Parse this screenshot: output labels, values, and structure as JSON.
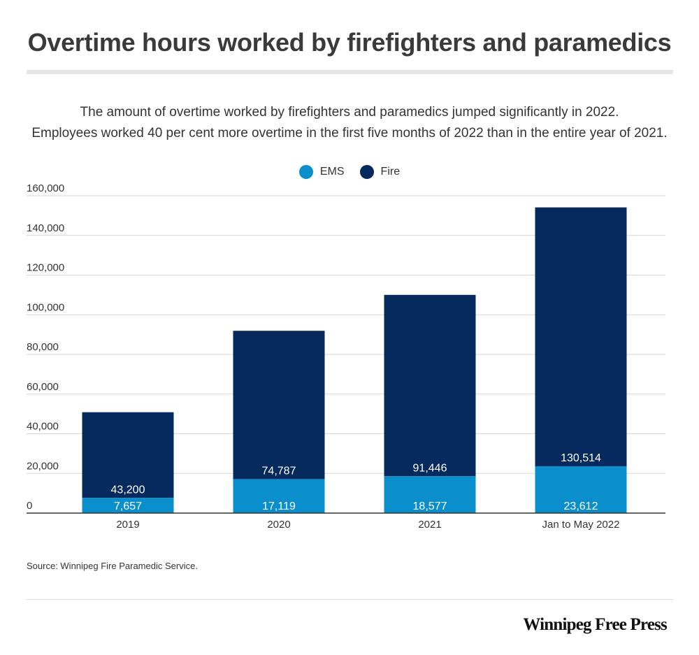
{
  "header": {
    "title": "Overtime hours worked by firefighters and paramedics",
    "subtitle_line1": "The amount of overtime worked by firefighters and paramedics jumped significantly in 2022.",
    "subtitle_line2": "Employees worked 40 per cent more overtime in the first five months of 2022 than in the entire year of 2021."
  },
  "legend": [
    {
      "label": "EMS",
      "color": "#0a8fcc"
    },
    {
      "label": "Fire",
      "color": "#062a5e"
    }
  ],
  "chart_data": {
    "type": "bar",
    "stacked": true,
    "categories": [
      "2019",
      "2020",
      "2021",
      "Jan to May 2022"
    ],
    "series": [
      {
        "name": "EMS",
        "values": [
          7657,
          17119,
          18577,
          23612
        ],
        "labels": [
          "7,657",
          "17,119",
          "18,577",
          "23,612"
        ],
        "color": "#0a8fcc"
      },
      {
        "name": "Fire",
        "values": [
          43200,
          74787,
          91446,
          130514
        ],
        "labels": [
          "43,200",
          "74,787",
          "91,446",
          "130,514"
        ],
        "color": "#062a5e"
      }
    ],
    "ylim": [
      0,
      160000
    ],
    "yticks": [
      0,
      20000,
      40000,
      60000,
      80000,
      100000,
      120000,
      140000,
      160000
    ],
    "ytick_labels": [
      "0",
      "20,000",
      "40,000",
      "60,000",
      "80,000",
      "100,000",
      "120,000",
      "140,000",
      "160,000"
    ],
    "grid": true,
    "legend_position": "top-center"
  },
  "footer": {
    "source": "Source: Winnipeg Fire Paramedic Service.",
    "brand": "Winnipeg Free Press"
  }
}
